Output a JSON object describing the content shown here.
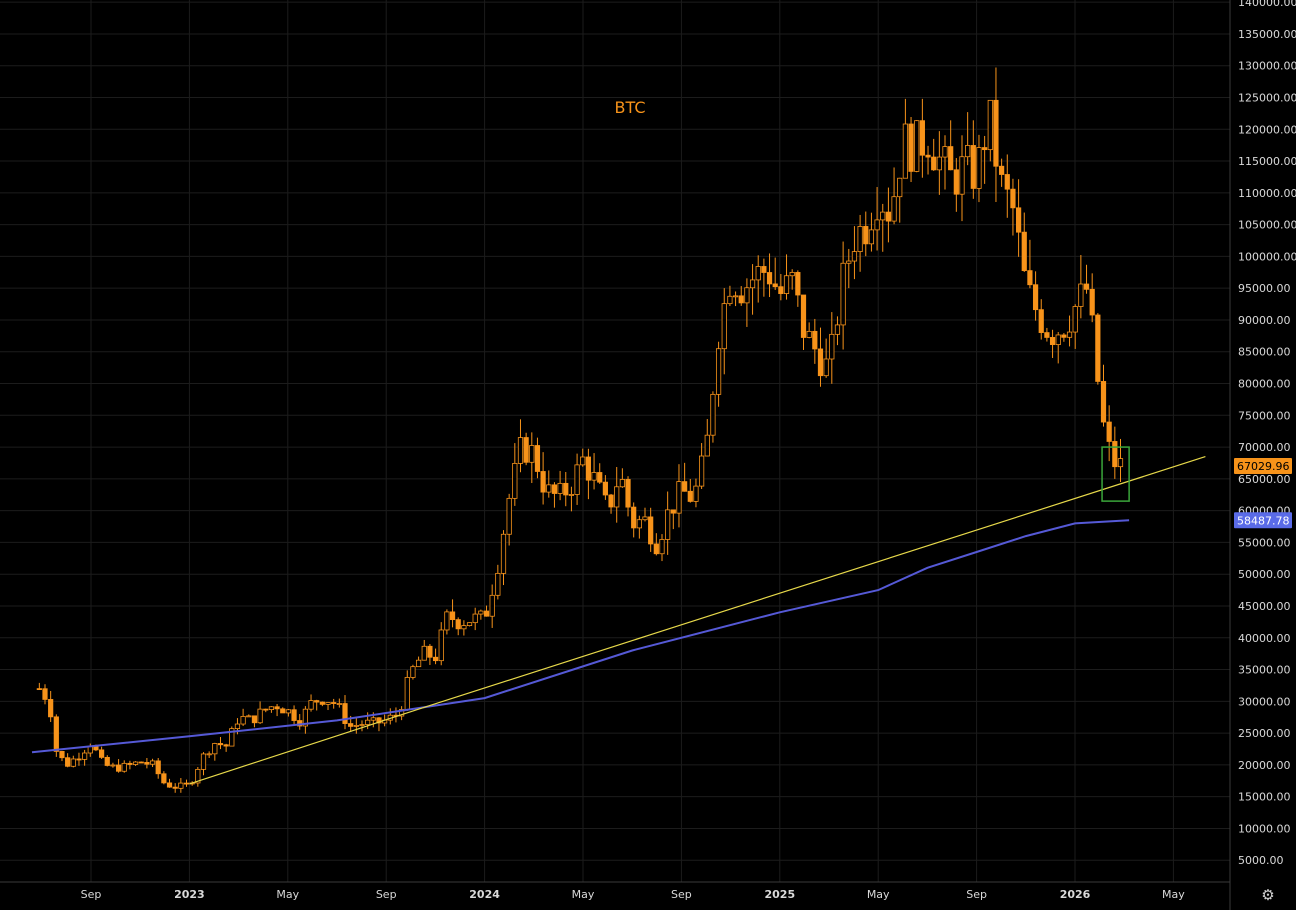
{
  "chart_data": {
    "type": "candlestick",
    "title": "BTC",
    "ylim": [
      0,
      142500
    ],
    "y_ticks": [
      5000,
      10000,
      15000,
      20000,
      25000,
      30000,
      35000,
      40000,
      45000,
      50000,
      55000,
      60000,
      65000,
      70000,
      75000,
      80000,
      85000,
      90000,
      95000,
      100000,
      105000,
      110000,
      115000,
      120000,
      125000,
      130000,
      135000,
      140000
    ],
    "x_ticks": [
      {
        "label": "Sep",
        "month": 8
      },
      {
        "label": "2023",
        "month": 12,
        "bold": true
      },
      {
        "label": "May",
        "month": 16
      },
      {
        "label": "Sep",
        "month": 20
      },
      {
        "label": "2024",
        "month": 24,
        "bold": true
      },
      {
        "label": "May",
        "month": 28
      },
      {
        "label": "Sep",
        "month": 32
      },
      {
        "label": "2025",
        "month": 36,
        "bold": true
      },
      {
        "label": "May",
        "month": 40
      },
      {
        "label": "Sep",
        "month": 44
      },
      {
        "label": "2026",
        "month": 48,
        "bold": true
      },
      {
        "label": "May",
        "month": 52
      }
    ],
    "price_path": [
      [
        5.9,
        32000
      ],
      [
        6.3,
        30000
      ],
      [
        6.6,
        22000
      ],
      [
        7.0,
        20000
      ],
      [
        7.5,
        21500
      ],
      [
        8.0,
        23500
      ],
      [
        8.5,
        20000
      ],
      [
        9.0,
        19500
      ],
      [
        9.5,
        19800
      ],
      [
        10.0,
        20500
      ],
      [
        10.5,
        20000
      ],
      [
        11.0,
        17000
      ],
      [
        11.5,
        16500
      ],
      [
        12.0,
        16800
      ],
      [
        12.5,
        21000
      ],
      [
        13.0,
        23500
      ],
      [
        13.5,
        23000
      ],
      [
        14.0,
        27500
      ],
      [
        14.5,
        27000
      ],
      [
        15.0,
        28500
      ],
      [
        15.5,
        29500
      ],
      [
        16.0,
        28500
      ],
      [
        16.5,
        27000
      ],
      [
        17.0,
        30000
      ],
      [
        17.5,
        30500
      ],
      [
        18.0,
        29500
      ],
      [
        18.5,
        26000
      ],
      [
        19.0,
        26500
      ],
      [
        19.5,
        26500
      ],
      [
        20.0,
        27000
      ],
      [
        20.5,
        28000
      ],
      [
        21.0,
        34500
      ],
      [
        21.5,
        37500
      ],
      [
        22.0,
        37000
      ],
      [
        22.5,
        43500
      ],
      [
        23.0,
        42500
      ],
      [
        23.5,
        43000
      ],
      [
        24.0,
        43000
      ],
      [
        24.5,
        51000
      ],
      [
        25.0,
        62000
      ],
      [
        25.5,
        70000
      ],
      [
        26.0,
        69000
      ],
      [
        26.5,
        63000
      ],
      [
        27.0,
        62000
      ],
      [
        27.5,
        64000
      ],
      [
        28.0,
        68000
      ],
      [
        28.5,
        64500
      ],
      [
        29.0,
        60000
      ],
      [
        29.5,
        66000
      ],
      [
        30.0,
        58000
      ],
      [
        30.5,
        58500
      ],
      [
        31.0,
        55000
      ],
      [
        31.5,
        60000
      ],
      [
        32.0,
        63000
      ],
      [
        32.5,
        62000
      ],
      [
        33.0,
        69000
      ],
      [
        33.5,
        88000
      ],
      [
        34.0,
        97000
      ],
      [
        34.5,
        95000
      ],
      [
        35.0,
        97000
      ],
      [
        35.5,
        98000
      ],
      [
        36.0,
        94000
      ],
      [
        36.5,
        96000
      ],
      [
        37.0,
        88000
      ],
      [
        37.5,
        85000
      ],
      [
        38.0,
        82000
      ],
      [
        38.5,
        95000
      ],
      [
        39.0,
        103000
      ],
      [
        39.5,
        105000
      ],
      [
        40.0,
        110000
      ],
      [
        40.5,
        107000
      ],
      [
        41.0,
        118000
      ],
      [
        41.5,
        117000
      ],
      [
        42.0,
        119000
      ],
      [
        42.5,
        115000
      ],
      [
        43.0,
        112000
      ],
      [
        43.5,
        114000
      ],
      [
        44.0,
        113000
      ],
      [
        44.5,
        122000
      ],
      [
        45.0,
        111000
      ],
      [
        45.5,
        107000
      ],
      [
        46.0,
        95000
      ],
      [
        46.5,
        91000
      ],
      [
        47.0,
        88000
      ],
      [
        47.5,
        89000
      ],
      [
        48.0,
        92000
      ],
      [
        48.5,
        95000
      ],
      [
        49.0,
        78000
      ],
      [
        49.2,
        72000
      ],
      [
        49.5,
        68000
      ],
      [
        49.8,
        67000
      ],
      [
        50.0,
        67029.96
      ]
    ],
    "series": [
      {
        "name": "",
        "color": "#5559d6",
        "points": [
          [
            5.6,
            22000
          ],
          [
            12,
            24500
          ],
          [
            18,
            27000
          ],
          [
            24,
            30500
          ],
          [
            30,
            38000
          ],
          [
            36,
            44000
          ],
          [
            40,
            47500
          ],
          [
            42,
            51000
          ],
          [
            44,
            53500
          ],
          [
            46,
            56000
          ],
          [
            48,
            58000
          ],
          [
            50.2,
            58487.78
          ]
        ]
      },
      {
        "name": "",
        "color": "#e6d84a",
        "points": [
          [
            12,
            17000
          ],
          [
            21.5,
            29000
          ],
          [
            53.3,
            68500
          ]
        ]
      }
    ],
    "highlight_box": {
      "x_months": [
        49.1,
        50.2
      ],
      "y": [
        61500,
        70000
      ],
      "color": "#3aa63a"
    },
    "last_price": {
      "value": "67029.96",
      "y": 67029.96,
      "color": "#f7931a"
    },
    "ma_value": {
      "value": "58487.78",
      "y": 58487.78,
      "color": "#5a6be8"
    },
    "colors": {
      "candle": "#f7931a",
      "grid": "#1c1c1c",
      "axis_text": "#d9d9d9",
      "background": "#000000"
    }
  },
  "toolbar": {
    "settings_icon": "⚙"
  }
}
